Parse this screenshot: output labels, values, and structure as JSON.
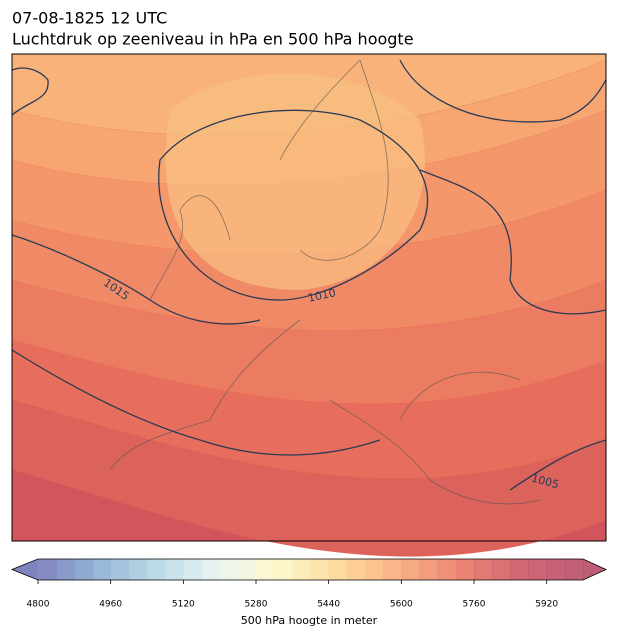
{
  "map": {
    "title": "07-08-1825 12 UTC",
    "subtitle": "Luchtdruk op zeeniveau in hPa en 500 hPa hoogte",
    "isobar_labels": [
      "1015",
      "1010",
      "1005"
    ],
    "colorbar": {
      "label": "500 hPa hoogte in meter",
      "range": [
        4800,
        6000
      ],
      "ticks": [
        4800,
        4960,
        5120,
        5280,
        5440,
        5600,
        5760,
        5920
      ],
      "colors": [
        "#6a6fb3",
        "#86a9cf",
        "#b4d6e6",
        "#e8f4ef",
        "#fdf6c0",
        "#fcd38f",
        "#f7a36f",
        "#e86f5c",
        "#c94c5c",
        "#b2425e"
      ]
    }
  }
}
